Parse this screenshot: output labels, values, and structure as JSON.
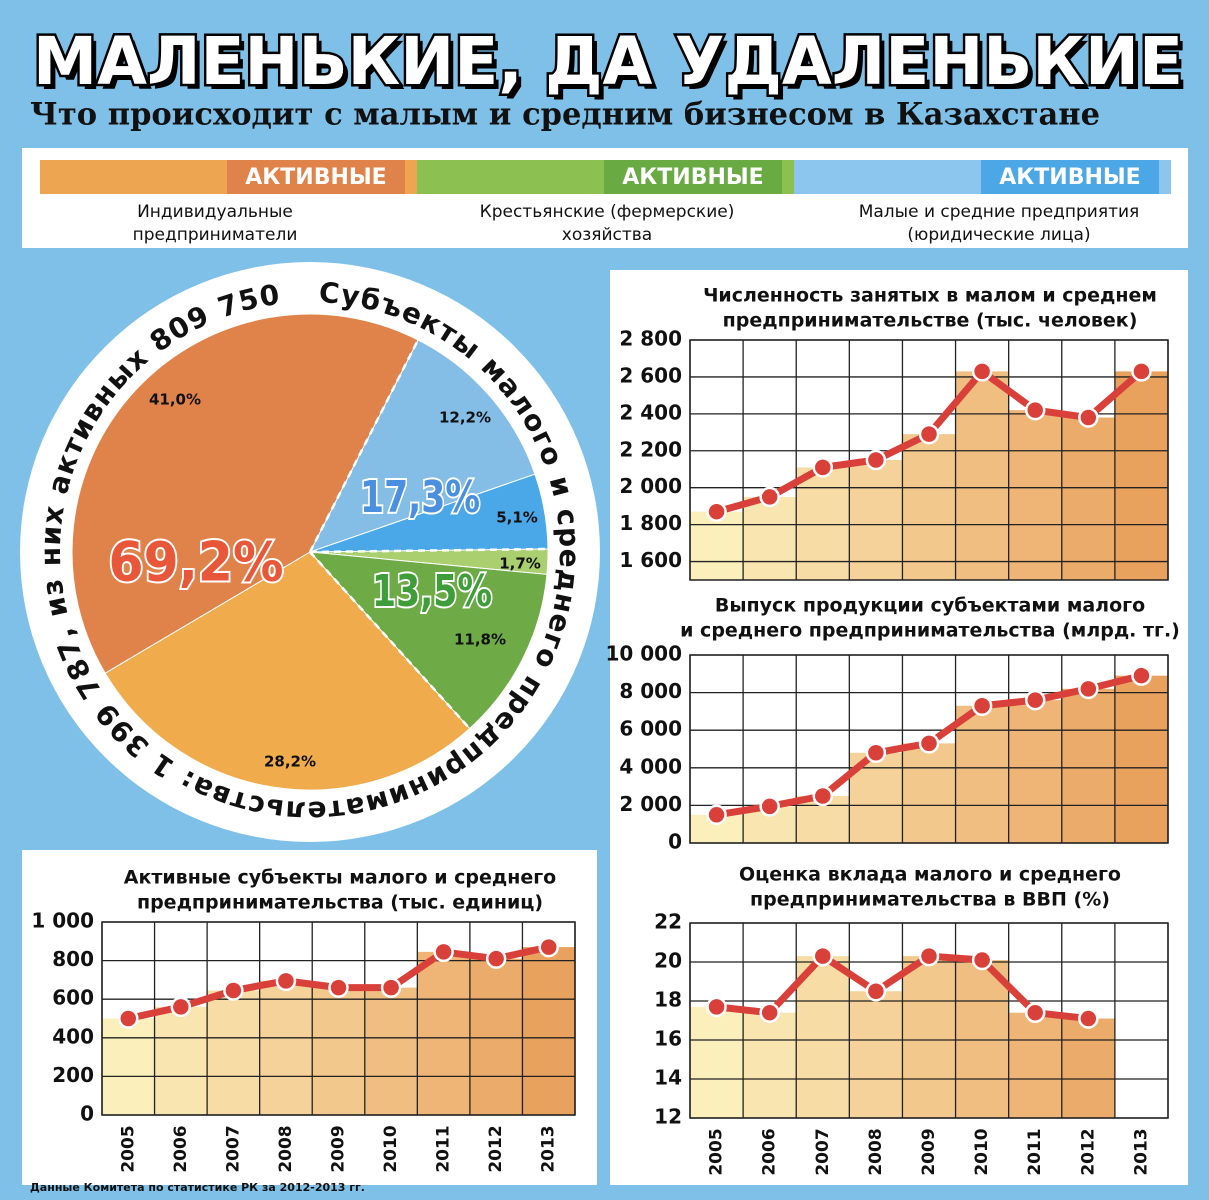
{
  "header": {
    "title": "МАЛЕНЬКИЕ, ДА УДАЛЕНЬКИЕ",
    "subtitle": "Что происходит с малым и средним бизнесом в Казахстане"
  },
  "legend": [
    {
      "label": [
        "Индивидуальные",
        "предприниматели"
      ],
      "badge": "АКТИВНЫЕ",
      "color": "#eea552",
      "badge_color": "#e0834a"
    },
    {
      "label": [
        "Крестьянские (фермерские)",
        "хозяйства"
      ],
      "badge": "АКТИВНЫЕ",
      "color": "#8cc152",
      "badge_color": "#6aaa42"
    },
    {
      "label": [
        "Малые и средние предприятия",
        "(юридические лица)"
      ],
      "badge": "АКТИВНЫЕ",
      "color": "#8cc6ee",
      "badge_color": "#4ba7e6"
    }
  ],
  "chart_data": [
    {
      "type": "pie",
      "ring_text": "Субъекты малого и среднего предпринимательства: 1 399 787, из них активных 809 750",
      "values": [
        12.2,
        5.1,
        1.7,
        11.8,
        28.2,
        41.0
      ],
      "value_labels": [
        "12,2%",
        "5,1%",
        "1,7%",
        "11,8%",
        "28,2%",
        "41,0%"
      ],
      "colors": [
        "#84bde6",
        "#4aa8e8",
        "#a9cf6e",
        "#6eaa46",
        "#efab4c",
        "#e0834a"
      ],
      "group_values": [
        17.3,
        13.5,
        69.2
      ],
      "group_labels": [
        "17,3%",
        "13,5%",
        "69,2%"
      ],
      "group_colors": [
        "#4a8fe0",
        "#3f9e3a",
        "#e8573a"
      ]
    },
    {
      "type": "line",
      "title": [
        "Численность занятых в малом и среднем",
        "предпринимательстве (тыс. человек)"
      ],
      "values": [
        1870,
        1950,
        2110,
        2150,
        2290,
        2630,
        2420,
        2380,
        2630
      ],
      "ylim": [
        1500,
        2800
      ],
      "yticks": [
        {
          "value": 1600,
          "label": "1 600"
        },
        {
          "value": 1800,
          "label": "1 800"
        },
        {
          "value": 2000,
          "label": "2 000"
        },
        {
          "value": 2200,
          "label": "2 200"
        },
        {
          "value": 2400,
          "label": "2 400"
        },
        {
          "value": 2600,
          "label": "2 600"
        },
        {
          "value": 2800,
          "label": "2 800"
        }
      ],
      "color": "#d9403a",
      "bar_colors": [
        "#fbefbc",
        "#e9a15e"
      ],
      "grid": true
    },
    {
      "type": "line",
      "title": [
        "Выпуск продукции субъектами малого",
        "и среднего предпринимательства (млрд. тг.)"
      ],
      "values": [
        1500,
        1950,
        2500,
        4800,
        5300,
        7300,
        7600,
        8200,
        8900
      ],
      "ylim": [
        0,
        10000
      ],
      "yticks": [
        0,
        {
          "value": 2000,
          "label": "2 000"
        },
        {
          "value": 4000,
          "label": "4 000"
        },
        {
          "value": 6000,
          "label": "6 000"
        },
        {
          "value": 8000,
          "label": "8 000"
        },
        {
          "value": 10000,
          "label": "10 000"
        }
      ],
      "color": "#d9403a",
      "bar_colors": [
        "#fbefbc",
        "#e9a15e"
      ],
      "grid": true
    },
    {
      "type": "line",
      "title": [
        "Оценка вклада малого и среднего",
        "предпринимательства в ВВП (%)"
      ],
      "categories": [
        "2005",
        "2006",
        "2007",
        "2008",
        "2009",
        "2010",
        "2011",
        "2012",
        "2013"
      ],
      "values": [
        17.7,
        17.4,
        20.3,
        18.5,
        20.3,
        20.1,
        17.4,
        17.1,
        null
      ],
      "ylim": [
        12,
        22
      ],
      "yticks": [
        12,
        14,
        16,
        18,
        20,
        22
      ],
      "color": "#d9403a",
      "bar_colors": [
        "#fbefbc",
        "#e9a15e"
      ],
      "grid": true
    },
    {
      "type": "line",
      "title": [
        "Активные субъекты малого и среднего",
        "предпринимательства (тыс. единиц)"
      ],
      "categories": [
        "2005",
        "2006",
        "2007",
        "2008",
        "2009",
        "2010",
        "2011",
        "2012",
        "2013"
      ],
      "values": [
        500,
        560,
        645,
        695,
        660,
        660,
        845,
        810,
        870
      ],
      "ylim": [
        0,
        1000
      ],
      "yticks": [
        0,
        200,
        400,
        600,
        800,
        {
          "value": 1000,
          "label": "1 000"
        }
      ],
      "color": "#d9403a",
      "bar_colors": [
        "#fbefbc",
        "#e9a15e"
      ],
      "grid": true
    }
  ],
  "source": "Данные Комитета по статистике РК за 2012-2013 гг."
}
